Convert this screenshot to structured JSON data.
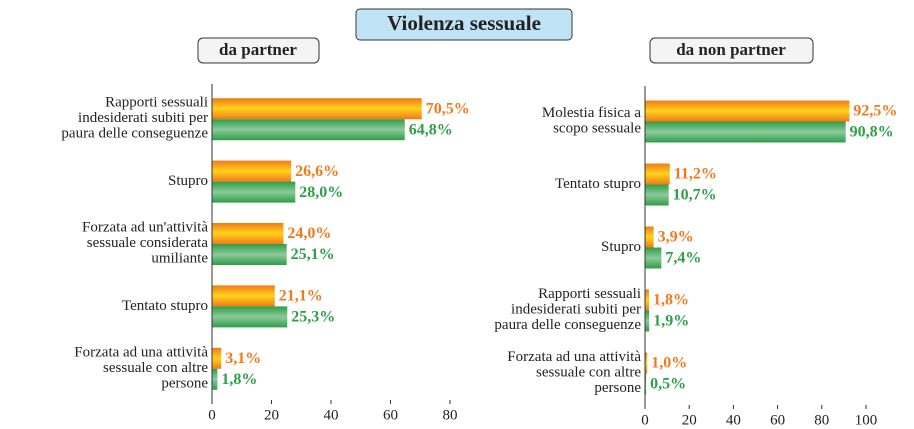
{
  "title": "Violenza sessuale",
  "chart_data": [
    {
      "type": "bar",
      "orientation": "horizontal",
      "subtitle": "da partner",
      "categories": [
        "Rapporti sessuali\nindesiderati subiti per\npaura delle conseguenze",
        "Stupro",
        "Forzata ad un'attività\nsessuale considerata\numiliante",
        "Tentato stupro",
        "Forzata ad una attività\nsessuale con altre\npersone"
      ],
      "series": [
        {
          "color": "#f07a1a",
          "values": [
            70.5,
            26.6,
            24.0,
            21.1,
            3.1
          ],
          "value_labels": [
            "70,5%",
            "26,6%",
            "24,0%",
            "21,1%",
            "3,1%"
          ]
        },
        {
          "color": "#2e9e48",
          "values": [
            64.8,
            28.0,
            25.1,
            25.3,
            1.8
          ],
          "value_labels": [
            "64,8%",
            "28,0%",
            "25,1%",
            "25,3%",
            "1,8%"
          ]
        }
      ],
      "xlim": [
        0,
        80
      ],
      "xticks": [
        0,
        20,
        40,
        60,
        80
      ]
    },
    {
      "type": "bar",
      "orientation": "horizontal",
      "subtitle": "da non partner",
      "categories": [
        "Molestia fisica  a\nscopo sessuale",
        "Tentato stupro",
        "Stupro",
        "Rapporti sessuali\nindesiderati subiti per\npaura delle conseguenze",
        "Forzata ad una attività\nsessuale con altre\npersone"
      ],
      "series": [
        {
          "color": "#f07a1a",
          "values": [
            92.5,
            11.2,
            3.9,
            1.8,
            1.0
          ],
          "value_labels": [
            "92,5%",
            "11,2%",
            "3,9%",
            "1,8%",
            "1,0%"
          ]
        },
        {
          "color": "#2e9e48",
          "values": [
            90.8,
            10.7,
            7.4,
            1.9,
            0.5
          ],
          "value_labels": [
            "90,8%",
            "10,7%",
            "7,4%",
            "1,9%",
            "0,5%"
          ]
        }
      ],
      "xlim": [
        0,
        100
      ],
      "xticks": [
        0,
        20,
        40,
        60,
        80,
        100
      ]
    }
  ]
}
